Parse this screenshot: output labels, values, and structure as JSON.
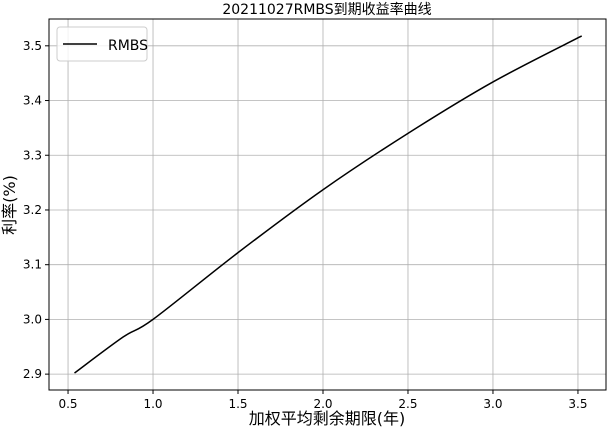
{
  "chart_data": {
    "type": "line",
    "title": "20211027RMBS到期收益率曲线",
    "xlabel": "加权平均剩余期限(年)",
    "ylabel": "利率(%)",
    "xlim": [
      0.388,
      3.665
    ],
    "ylim": [
      2.871,
      3.549
    ],
    "xticks": [
      "0.5",
      "1.0",
      "1.5",
      "2.0",
      "2.5",
      "3.0",
      "3.5"
    ],
    "yticks": [
      "2.9",
      "3.0",
      "3.1",
      "3.2",
      "3.3",
      "3.4",
      "3.5"
    ],
    "grid": true,
    "legend_position": "top-left",
    "series": [
      {
        "name": "RMBS",
        "color": "#000000",
        "x": [
          0.538,
          0.825,
          1.0,
          1.5,
          2.0,
          2.5,
          3.0,
          3.522
        ],
        "y": [
          2.902,
          2.968,
          3.0,
          3.122,
          3.237,
          3.34,
          3.434,
          3.518
        ]
      }
    ]
  }
}
